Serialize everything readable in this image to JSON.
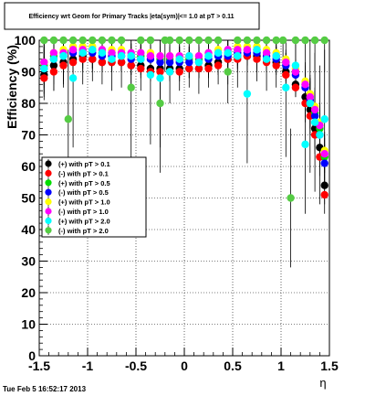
{
  "chart_data": {
    "type": "scatter",
    "title": "Efficiency wrt Geom for Primary Tracks  |eta(sym)|<= 1.0 at pT > 0.11",
    "xlabel": "η",
    "ylabel": "Efficiency (%)",
    "xlim": [
      -1.5,
      1.5
    ],
    "ylim": [
      0,
      100
    ],
    "x_ticks": [
      "-1.5",
      "-1",
      "-0.5",
      "0",
      "0.5",
      "1",
      "1.5"
    ],
    "y_ticks": [
      "0",
      "10",
      "20",
      "30",
      "40",
      "50",
      "60",
      "70",
      "80",
      "90",
      "100"
    ],
    "grid": true,
    "legend_position": "left-middle",
    "footer": "Tue Feb  5 16:52:17 2013",
    "series": [
      {
        "name": "(+) with pT > 0.1",
        "color": "#000000",
        "x": [
          -1.45,
          -1.35,
          -1.25,
          -1.15,
          -1.05,
          -0.95,
          -0.85,
          -0.75,
          -0.65,
          -0.55,
          -0.45,
          -0.35,
          -0.25,
          -0.15,
          -0.05,
          0.05,
          0.15,
          0.25,
          0.35,
          0.45,
          0.55,
          0.65,
          0.75,
          0.85,
          0.95,
          1.05,
          1.15,
          1.25,
          1.3,
          1.35,
          1.4,
          1.45
        ],
        "y": [
          89,
          92,
          93,
          94,
          95,
          94,
          93,
          93,
          93,
          92,
          92,
          91,
          91,
          91,
          91,
          91,
          91,
          92,
          93,
          94,
          95,
          95,
          95,
          94,
          93,
          90,
          86,
          82,
          78,
          72,
          66,
          54
        ]
      },
      {
        "name": "(-) with pT > 0.1",
        "color": "#ff0000",
        "x": [
          -1.45,
          -1.35,
          -1.25,
          -1.15,
          -1.05,
          -0.95,
          -0.85,
          -0.75,
          -0.65,
          -0.55,
          -0.45,
          -0.35,
          -0.25,
          -0.15,
          -0.05,
          0.05,
          0.15,
          0.25,
          0.35,
          0.45,
          0.55,
          0.65,
          0.75,
          0.85,
          0.95,
          1.05,
          1.15,
          1.25,
          1.3,
          1.35,
          1.4,
          1.45
        ],
        "y": [
          88,
          90,
          92,
          93,
          94,
          94,
          93,
          93,
          93,
          92,
          91,
          90,
          90,
          90,
          90,
          91,
          91,
          91,
          92,
          94,
          94,
          95,
          94,
          93,
          92,
          89,
          85,
          80,
          76,
          70,
          63,
          51
        ]
      },
      {
        "name": "(+) with pT > 0.5",
        "color": "#00dd00",
        "x": [
          -1.45,
          -1.35,
          -1.25,
          -1.15,
          -1.05,
          -0.95,
          -0.85,
          -0.75,
          -0.65,
          -0.55,
          -0.45,
          -0.35,
          -0.25,
          -0.15,
          -0.05,
          0.05,
          0.15,
          0.25,
          0.35,
          0.45,
          0.55,
          0.65,
          0.75,
          0.85,
          0.95,
          1.05,
          1.15,
          1.25,
          1.3,
          1.35,
          1.4,
          1.45
        ],
        "y": [
          92,
          95,
          96,
          97,
          97,
          97,
          96,
          96,
          96,
          95,
          95,
          95,
          94,
          94,
          94,
          94,
          94,
          95,
          95,
          96,
          97,
          97,
          97,
          96,
          95,
          93,
          90,
          86,
          82,
          77,
          72,
          63
        ]
      },
      {
        "name": "(-) with pT > 0.5",
        "color": "#0000ff",
        "x": [
          -1.45,
          -1.35,
          -1.25,
          -1.15,
          -1.05,
          -0.95,
          -0.85,
          -0.75,
          -0.65,
          -0.55,
          -0.45,
          -0.35,
          -0.25,
          -0.15,
          -0.05,
          0.05,
          0.15,
          0.25,
          0.35,
          0.45,
          0.55,
          0.65,
          0.75,
          0.85,
          0.95,
          1.05,
          1.15,
          1.25,
          1.3,
          1.35,
          1.4,
          1.45
        ],
        "y": [
          91,
          94,
          95,
          96,
          96,
          96,
          95,
          95,
          95,
          94,
          94,
          94,
          93,
          93,
          93,
          93,
          93,
          94,
          95,
          95,
          96,
          96,
          96,
          95,
          94,
          92,
          89,
          85,
          81,
          76,
          70,
          61
        ]
      },
      {
        "name": "(+) with pT > 1.0",
        "color": "#ffff00",
        "x": [
          -1.45,
          -1.35,
          -1.25,
          -1.15,
          -1.05,
          -0.95,
          -0.85,
          -0.75,
          -0.65,
          -0.55,
          -0.45,
          -0.35,
          -0.25,
          -0.15,
          -0.05,
          0.05,
          0.15,
          0.25,
          0.35,
          0.45,
          0.55,
          0.65,
          0.75,
          0.85,
          0.95,
          1.05,
          1.15,
          1.25,
          1.3,
          1.35,
          1.4,
          1.45
        ],
        "y": [
          93,
          96,
          97,
          98,
          98,
          98,
          97,
          97,
          97,
          96,
          96,
          96,
          95,
          95,
          95,
          95,
          95,
          96,
          97,
          97,
          98,
          98,
          98,
          97,
          96,
          94,
          91,
          87,
          83,
          79,
          74,
          65
        ]
      },
      {
        "name": "(-) with pT > 1.0",
        "color": "#ff00ff",
        "x": [
          -1.45,
          -1.35,
          -1.25,
          -1.15,
          -1.05,
          -0.95,
          -0.85,
          -0.75,
          -0.65,
          -0.55,
          -0.45,
          -0.35,
          -0.25,
          -0.15,
          -0.05,
          0.05,
          0.15,
          0.25,
          0.35,
          0.45,
          0.55,
          0.65,
          0.75,
          0.85,
          0.95,
          1.05,
          1.15,
          1.25,
          1.3,
          1.35,
          1.4,
          1.45
        ],
        "y": [
          93,
          96,
          96,
          97,
          97,
          97,
          97,
          96,
          96,
          96,
          96,
          95,
          95,
          95,
          95,
          95,
          95,
          96,
          96,
          97,
          97,
          97,
          97,
          96,
          95,
          93,
          90,
          86,
          82,
          78,
          73,
          64
        ]
      },
      {
        "name": "(+) with pT > 2.0",
        "color": "#00ffff",
        "x": [
          -1.45,
          -1.35,
          -1.25,
          -1.15,
          -1.05,
          -0.95,
          -0.85,
          -0.75,
          -0.65,
          -0.55,
          -0.45,
          -0.35,
          -0.25,
          -0.15,
          -0.05,
          0.05,
          0.15,
          0.25,
          0.35,
          0.45,
          0.55,
          0.65,
          0.75,
          0.85,
          0.95,
          1.05,
          1.15,
          1.25,
          1.3,
          1.35,
          1.4,
          1.45
        ],
        "y": [
          91,
          94,
          95,
          88,
          96,
          97,
          96,
          94,
          95,
          95,
          94,
          89,
          88,
          90,
          94,
          95,
          93,
          95,
          96,
          96,
          95,
          83,
          97,
          94,
          95,
          85,
          92,
          67,
          80,
          74,
          70,
          75
        ]
      },
      {
        "name": "(-) with pT > 2.0",
        "color": "#55cc44",
        "x": [
          -1.45,
          -1.35,
          -1.25,
          -1.2,
          -1.15,
          -1.05,
          -0.95,
          -0.85,
          -0.75,
          -0.65,
          -0.55,
          -0.45,
          -0.35,
          -0.25,
          -0.2,
          -0.15,
          -0.05,
          0.05,
          0.15,
          0.25,
          0.35,
          0.45,
          0.55,
          0.65,
          0.75,
          0.85,
          0.95,
          1.02,
          1.1,
          1.15,
          1.25,
          1.35,
          1.45
        ],
        "y": [
          100,
          100,
          100,
          75,
          100,
          100,
          100,
          100,
          100,
          100,
          85,
          100,
          100,
          80,
          100,
          100,
          100,
          100,
          100,
          100,
          100,
          90,
          100,
          100,
          100,
          100,
          100,
          100,
          50,
          100,
          100,
          100,
          100
        ]
      }
    ]
  }
}
